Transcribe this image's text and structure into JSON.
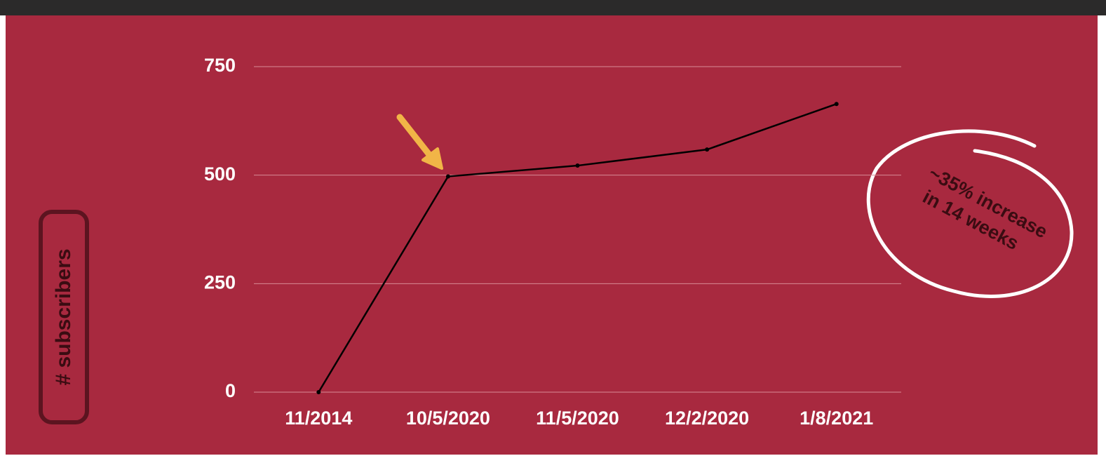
{
  "chart_data": {
    "type": "line",
    "ylabel": "# subscribers",
    "categories": [
      "11/2014",
      "10/5/2020",
      "11/5/2020",
      "12/2/2020",
      "1/8/2021"
    ],
    "series": [
      {
        "color": "#000000",
        "values": [
          0,
          497,
          522,
          559,
          664
        ]
      }
    ],
    "ylim": [
      0,
      750
    ],
    "yticks": [
      0,
      250,
      500,
      750
    ],
    "grid": true,
    "annotations": [
      "~35% increase",
      "in 14 weeks"
    ]
  }
}
